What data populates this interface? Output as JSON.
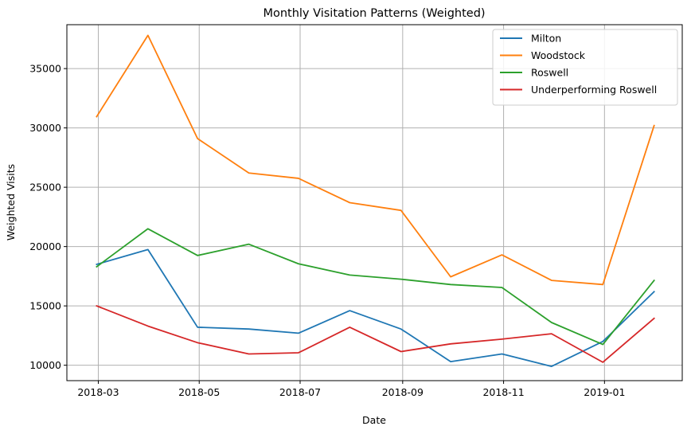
{
  "chart_data": {
    "type": "line",
    "title": "Monthly Visitation Patterns (Weighted)",
    "xlabel": "Date",
    "ylabel": "Weighted Visits",
    "x": [
      "2018-02-28",
      "2018-03-31",
      "2018-04-30",
      "2018-05-31",
      "2018-06-30",
      "2018-07-31",
      "2018-08-31",
      "2018-09-30",
      "2018-10-31",
      "2018-11-30",
      "2018-12-31",
      "2019-01-31"
    ],
    "xlim": [
      "2018-02-10",
      "2019-02-17"
    ],
    "ylim": [
      8700,
      38700
    ],
    "x_ticks": [
      "2018-03-01",
      "2018-05-01",
      "2018-07-01",
      "2018-09-01",
      "2018-11-01",
      "2019-01-01"
    ],
    "x_tick_labels": [
      "2018-03",
      "2018-05",
      "2018-07",
      "2018-09",
      "2018-11",
      "2019-01"
    ],
    "y_ticks": [
      10000,
      15000,
      20000,
      25000,
      30000,
      35000
    ],
    "y_tick_labels": [
      "10000",
      "15000",
      "20000",
      "25000",
      "30000",
      "35000"
    ],
    "grid": true,
    "legend_position": "top-right",
    "series": [
      {
        "name": "Milton",
        "color": "#1f77b4",
        "values": [
          18500,
          19750,
          13200,
          13050,
          12700,
          14600,
          13050,
          10300,
          10950,
          9900,
          12000,
          16200
        ]
      },
      {
        "name": "Woodstock",
        "color": "#ff7f0e",
        "values": [
          30950,
          37800,
          29100,
          26200,
          25750,
          23700,
          23050,
          17450,
          19300,
          17150,
          16800,
          30200
        ]
      },
      {
        "name": "Roswell",
        "color": "#2ca02c",
        "values": [
          18300,
          21500,
          19250,
          20200,
          18550,
          17600,
          17250,
          16800,
          16550,
          13600,
          11750,
          17150
        ]
      },
      {
        "name": "Underperforming Roswell",
        "color": "#d62728",
        "values": [
          15000,
          13300,
          11900,
          10950,
          11050,
          13200,
          11150,
          11800,
          12200,
          12650,
          10250,
          13950
        ]
      }
    ]
  }
}
